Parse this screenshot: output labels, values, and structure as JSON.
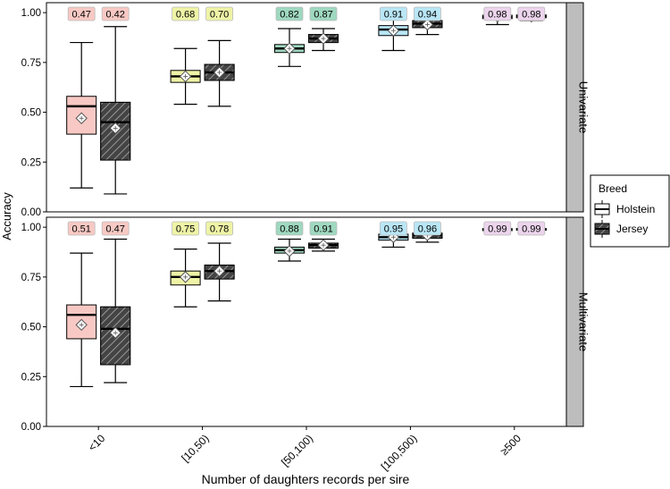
{
  "chart_data": {
    "type": "box",
    "xlabel": "Number of daughters records per sire",
    "ylabel": "Accuracy",
    "categories": [
      "<10",
      "[10,50)",
      "[50,100)",
      "[100,500)",
      "≥500"
    ],
    "ylim": [
      0,
      1.05
    ],
    "yticks": [
      0.0,
      0.25,
      0.5,
      0.75,
      1.0
    ],
    "ytick_labels": [
      "0.00",
      "0.25",
      "0.50",
      "0.75",
      "1.00"
    ],
    "grid": false,
    "legend": {
      "title": "Breed",
      "position": "right",
      "entries": [
        {
          "label": "Holstein",
          "pattern": "plain"
        },
        {
          "label": "Jersey",
          "pattern": "hatched"
        }
      ]
    },
    "category_colors": [
      "#f8c9c4",
      "#eef3a6",
      "#9fd8c0",
      "#b9e6f5",
      "#ecd4ec"
    ],
    "panels": [
      {
        "strip": "Univariate",
        "series": [
          {
            "name": "Holstein",
            "boxes": [
              {
                "min": 0.12,
                "q1": 0.39,
                "median": 0.53,
                "q3": 0.58,
                "max": 0.85,
                "mean": 0.47,
                "label": "0.47"
              },
              {
                "min": 0.54,
                "q1": 0.65,
                "median": 0.68,
                "q3": 0.71,
                "max": 0.82,
                "mean": 0.68,
                "label": "0.68"
              },
              {
                "min": 0.73,
                "q1": 0.8,
                "median": 0.82,
                "q3": 0.84,
                "max": 0.92,
                "mean": 0.82,
                "label": "0.82"
              },
              {
                "min": 0.81,
                "q1": 0.885,
                "median": 0.915,
                "q3": 0.935,
                "max": 0.985,
                "mean": 0.91,
                "label": "0.91"
              },
              {
                "min": 0.94,
                "q1": 0.97,
                "median": 0.978,
                "q3": 0.987,
                "max": 1.0,
                "mean": 0.98,
                "label": "0.98"
              }
            ]
          },
          {
            "name": "Jersey",
            "boxes": [
              {
                "min": 0.09,
                "q1": 0.26,
                "median": 0.45,
                "q3": 0.55,
                "max": 0.93,
                "mean": 0.42,
                "label": "0.42"
              },
              {
                "min": 0.53,
                "q1": 0.66,
                "median": 0.7,
                "q3": 0.74,
                "max": 0.86,
                "mean": 0.7,
                "label": "0.70"
              },
              {
                "min": 0.81,
                "q1": 0.85,
                "median": 0.87,
                "q3": 0.89,
                "max": 0.92,
                "mean": 0.87,
                "label": "0.87"
              },
              {
                "min": 0.89,
                "q1": 0.925,
                "median": 0.945,
                "q3": 0.96,
                "max": 0.975,
                "mean": 0.94,
                "label": "0.94"
              },
              {
                "min": 0.96,
                "q1": 0.975,
                "median": 0.982,
                "q3": 0.988,
                "max": 0.995,
                "mean": 0.98,
                "label": "0.98"
              }
            ]
          }
        ]
      },
      {
        "strip": "Multivariate",
        "series": [
          {
            "name": "Holstein",
            "boxes": [
              {
                "min": 0.2,
                "q1": 0.44,
                "median": 0.56,
                "q3": 0.61,
                "max": 0.87,
                "mean": 0.51,
                "label": "0.51"
              },
              {
                "min": 0.6,
                "q1": 0.71,
                "median": 0.75,
                "q3": 0.78,
                "max": 0.89,
                "mean": 0.75,
                "label": "0.75"
              },
              {
                "min": 0.83,
                "q1": 0.87,
                "median": 0.885,
                "q3": 0.9,
                "max": 0.94,
                "mean": 0.88,
                "label": "0.88"
              },
              {
                "min": 0.9,
                "q1": 0.935,
                "median": 0.95,
                "q3": 0.965,
                "max": 0.99,
                "mean": 0.95,
                "label": "0.95"
              },
              {
                "min": 0.975,
                "q1": 0.983,
                "median": 0.988,
                "q3": 0.993,
                "max": 1.0,
                "mean": 0.99,
                "label": "0.99"
              }
            ]
          },
          {
            "name": "Jersey",
            "boxes": [
              {
                "min": 0.22,
                "q1": 0.31,
                "median": 0.49,
                "q3": 0.6,
                "max": 0.94,
                "mean": 0.47,
                "label": "0.47"
              },
              {
                "min": 0.63,
                "q1": 0.74,
                "median": 0.78,
                "q3": 0.81,
                "max": 0.92,
                "mean": 0.78,
                "label": "0.78"
              },
              {
                "min": 0.88,
                "q1": 0.895,
                "median": 0.91,
                "q3": 0.92,
                "max": 0.94,
                "mean": 0.91,
                "label": "0.91"
              },
              {
                "min": 0.925,
                "q1": 0.945,
                "median": 0.96,
                "q3": 0.97,
                "max": 0.985,
                "mean": 0.96,
                "label": "0.96"
              },
              {
                "min": 0.98,
                "q1": 0.985,
                "median": 0.99,
                "q3": 0.993,
                "max": 0.998,
                "mean": 0.99,
                "label": "0.99"
              }
            ]
          }
        ]
      }
    ]
  }
}
